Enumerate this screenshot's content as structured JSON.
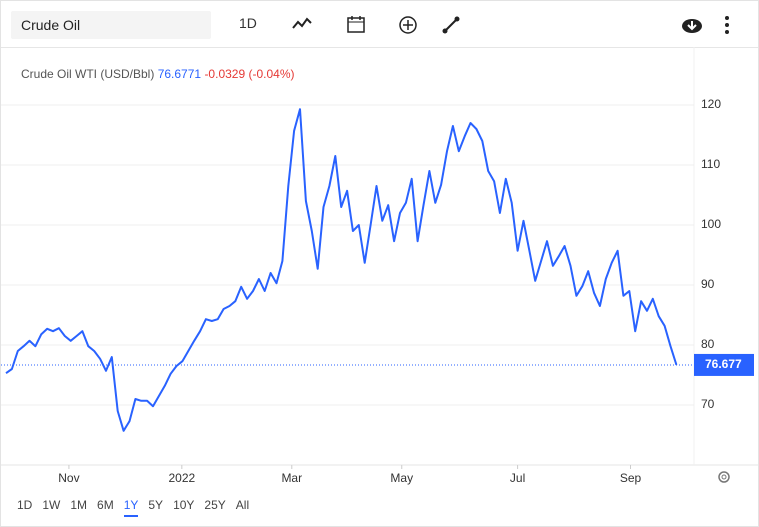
{
  "toolbar": {
    "search": "Crude Oil",
    "interval": "1D"
  },
  "chart_data": {
    "type": "line",
    "legend": {
      "name": "Crude Oil WTI (USD/Bbl)",
      "last": 76.6771,
      "change": -0.0329,
      "change_percent": "(-0.04%)"
    },
    "last_price": 76.677,
    "series": [
      {
        "name": "Crude Oil WTI (USD/Bbl)",
        "color": "#2962ff",
        "values": [
          75.3,
          76,
          79,
          79.8,
          80.7,
          79.8,
          81.8,
          82.7,
          82.3,
          82.8,
          81.5,
          80.7,
          81.5,
          82.3,
          79.8,
          79,
          77.7,
          75.7,
          78,
          69,
          65.7,
          67.3,
          71,
          70.7,
          70.7,
          69.8,
          71.5,
          73.2,
          75.2,
          76.5,
          77.3,
          79,
          80.7,
          82.3,
          84.3,
          84,
          84.3,
          86,
          86.5,
          87.3,
          89.7,
          87.7,
          89,
          91,
          89,
          92,
          90.3,
          94,
          106.5,
          115.7,
          119.3,
          104,
          99,
          92.7,
          103,
          106.5,
          111.5,
          103,
          105.7,
          99,
          100,
          93.7,
          100,
          106.5,
          100.7,
          103.3,
          97.3,
          102,
          103.7,
          107.7,
          97.3,
          103.3,
          109,
          103.7,
          106.7,
          112.3,
          116.5,
          112.3,
          114.8,
          117,
          116,
          114,
          109,
          107.3,
          102,
          107.7,
          103.7,
          95.7,
          100.7,
          95.7,
          90.7,
          94,
          97.3,
          93.2,
          94.8,
          96.5,
          93.2,
          88.2,
          89.8,
          92.3,
          88.7,
          86.5,
          91,
          93.7,
          95.7,
          88.2,
          89,
          82.3,
          87.3,
          85.7,
          87.7,
          84.8,
          83.2,
          79.8,
          76.7
        ]
      }
    ],
    "xlim": [
      0,
      117
    ],
    "xticks": [
      {
        "value": 10.7,
        "label": "Nov"
      },
      {
        "value": 29.9,
        "label": "2022"
      },
      {
        "value": 48.6,
        "label": "Mar"
      },
      {
        "value": 67.3,
        "label": "May"
      },
      {
        "value": 87,
        "label": "Jul"
      },
      {
        "value": 106.2,
        "label": "Sep"
      }
    ],
    "ylim": [
      60,
      130
    ],
    "yticks": [
      70,
      80,
      90,
      100,
      110,
      120
    ],
    "grid": true
  },
  "ranges": {
    "items": [
      "1D",
      "1W",
      "1M",
      "6M",
      "1Y",
      "5Y",
      "10Y",
      "25Y",
      "All"
    ],
    "active": 4
  }
}
